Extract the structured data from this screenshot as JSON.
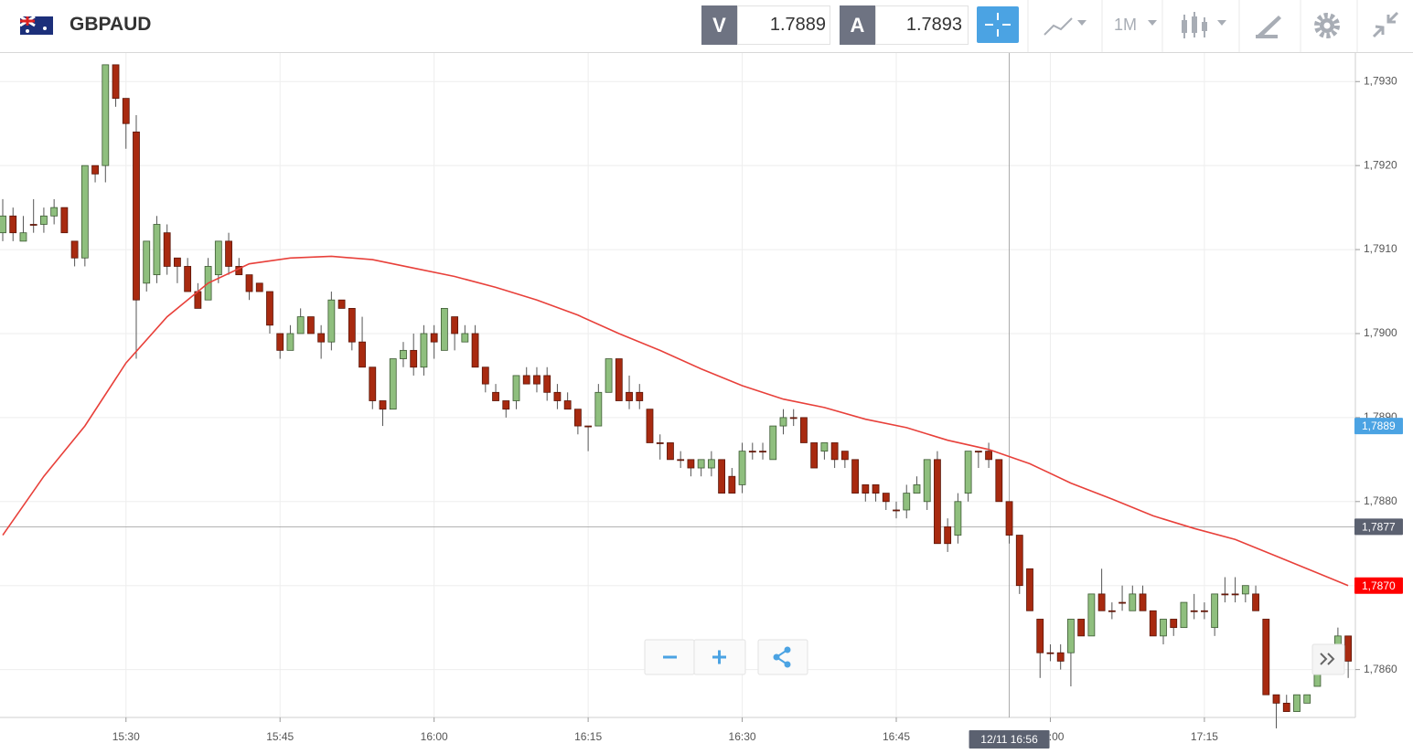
{
  "header": {
    "symbol": "GBPAUD",
    "bid_label": "V",
    "bid": 1.7889,
    "ask_label": "A",
    "ask": 1.7893,
    "timeframe": "1M"
  },
  "chart_data": {
    "type": "candlestick",
    "x": [
      "15:18",
      "15:19",
      "15:20",
      "15:21",
      "15:22",
      "15:23",
      "15:24",
      "15:25",
      "15:26",
      "15:27",
      "15:28",
      "15:29",
      "15:30",
      "15:31",
      "15:32",
      "15:33",
      "15:34",
      "15:35",
      "15:36",
      "15:37",
      "15:38",
      "15:39",
      "15:40",
      "15:41",
      "15:42",
      "15:43",
      "15:44",
      "15:45",
      "15:46",
      "15:47",
      "15:48",
      "15:49",
      "15:50",
      "15:51",
      "15:52",
      "15:53",
      "15:54",
      "15:55",
      "15:56",
      "15:57",
      "15:58",
      "15:59",
      "16:00",
      "16:01",
      "16:02",
      "16:03",
      "16:04",
      "16:05",
      "16:06",
      "16:07",
      "16:08",
      "16:09",
      "16:10",
      "16:11",
      "16:12",
      "16:13",
      "16:14",
      "16:15",
      "16:16",
      "16:17",
      "16:18",
      "16:19",
      "16:20",
      "16:21",
      "16:22",
      "16:23",
      "16:24",
      "16:25",
      "16:26",
      "16:27",
      "16:28",
      "16:29",
      "16:30",
      "16:31",
      "16:32",
      "16:33",
      "16:34",
      "16:35",
      "16:36",
      "16:37",
      "16:38",
      "16:39",
      "16:40",
      "16:41",
      "16:42",
      "16:43",
      "16:44",
      "16:45",
      "16:46",
      "16:47",
      "16:48",
      "16:49",
      "16:50",
      "16:51",
      "16:52",
      "16:53",
      "16:54",
      "16:55",
      "16:56",
      "16:57",
      "16:58",
      "16:59",
      "17:00",
      "17:01",
      "17:02",
      "17:03",
      "17:04",
      "17:05",
      "17:06",
      "17:07",
      "17:08",
      "17:09",
      "17:10",
      "17:11",
      "17:12",
      "17:13",
      "17:14",
      "17:15",
      "17:16",
      "17:17",
      "17:18",
      "17:19",
      "17:20",
      "17:21",
      "17:22",
      "17:23",
      "17:24",
      "17:25",
      "17:26",
      "17:27",
      "17:28",
      "17:29"
    ],
    "open": [
      1.7912,
      1.7914,
      1.7911,
      1.7913,
      1.7913,
      1.7914,
      1.7915,
      1.7911,
      1.7909,
      1.792,
      1.792,
      1.7932,
      1.7928,
      1.7924,
      1.7906,
      1.7907,
      1.7912,
      1.7909,
      1.7908,
      1.7905,
      1.7904,
      1.7907,
      1.7911,
      1.7908,
      1.7907,
      1.7906,
      1.7905,
      1.79,
      1.7898,
      1.79,
      1.7902,
      1.79,
      1.7899,
      1.7904,
      1.7903,
      1.7899,
      1.7896,
      1.7892,
      1.7891,
      1.7897,
      1.7898,
      1.7896,
      1.79,
      1.7898,
      1.7902,
      1.7899,
      1.79,
      1.7896,
      1.7893,
      1.7892,
      1.7892,
      1.7895,
      1.7895,
      1.7895,
      1.7893,
      1.7892,
      1.7891,
      1.7889,
      1.7889,
      1.7893,
      1.7897,
      1.7893,
      1.7893,
      1.7891,
      1.7887,
      1.7887,
      1.7885,
      1.7885,
      1.7884,
      1.7884,
      1.7885,
      1.7883,
      1.7882,
      1.7886,
      1.7886,
      1.7885,
      1.7889,
      1.789,
      1.789,
      1.7887,
      1.7886,
      1.7887,
      1.7886,
      1.7885,
      1.7882,
      1.7882,
      1.7881,
      1.7879,
      1.7879,
      1.7881,
      1.788,
      1.7885,
      1.7877,
      1.7876,
      1.7881,
      1.7886,
      1.7886,
      1.7885,
      1.788,
      1.7876,
      1.7872,
      1.7866,
      1.7862,
      1.7862,
      1.7862,
      1.7866,
      1.7864,
      1.7869,
      1.7867,
      1.7868,
      1.7867,
      1.7869,
      1.7867,
      1.7864,
      1.7866,
      1.7865,
      1.7867,
      1.7867,
      1.7865,
      1.7869,
      1.7869,
      1.7869,
      1.7869,
      1.7866,
      1.7857,
      1.7856,
      1.7855,
      1.7856,
      1.7858,
      1.7861,
      1.7862,
      1.7864
    ],
    "high": [
      1.7916,
      1.7915,
      1.7914,
      1.7916,
      1.7915,
      1.7916,
      1.7915,
      1.7911,
      1.792,
      1.792,
      1.7932,
      1.7932,
      1.7928,
      1.7926,
      1.7911,
      1.7914,
      1.7913,
      1.7909,
      1.7909,
      1.7906,
      1.7909,
      1.7911,
      1.7912,
      1.7909,
      1.7907,
      1.7906,
      1.7905,
      1.79,
      1.7901,
      1.7903,
      1.7902,
      1.7901,
      1.7905,
      1.7904,
      1.7903,
      1.7902,
      1.7896,
      1.7892,
      1.7897,
      1.7899,
      1.79,
      1.7901,
      1.7901,
      1.7903,
      1.7902,
      1.7901,
      1.7901,
      1.7896,
      1.7894,
      1.7892,
      1.7895,
      1.7896,
      1.7896,
      1.7896,
      1.7894,
      1.7893,
      1.7891,
      1.7889,
      1.7894,
      1.7897,
      1.7897,
      1.7895,
      1.7894,
      1.7891,
      1.7888,
      1.7887,
      1.7886,
      1.7885,
      1.7885,
      1.7886,
      1.7885,
      1.7884,
      1.7887,
      1.7887,
      1.7887,
      1.7889,
      1.7891,
      1.7891,
      1.789,
      1.7887,
      1.7887,
      1.7887,
      1.7886,
      1.7885,
      1.7882,
      1.7882,
      1.7881,
      1.788,
      1.7882,
      1.7883,
      1.7885,
      1.7886,
      1.7878,
      1.7881,
      1.7886,
      1.7886,
      1.7887,
      1.7885,
      1.788,
      1.7876,
      1.7872,
      1.7866,
      1.7863,
      1.7863,
      1.7866,
      1.7866,
      1.7869,
      1.7872,
      1.7868,
      1.787,
      1.787,
      1.787,
      1.7867,
      1.7866,
      1.7866,
      1.7868,
      1.7869,
      1.7868,
      1.7869,
      1.7871,
      1.7871,
      1.787,
      1.787,
      1.7866,
      1.7857,
      1.7857,
      1.7857,
      1.7857,
      1.786,
      1.7862,
      1.7865,
      1.7864
    ],
    "low": [
      1.7911,
      1.7911,
      1.7911,
      1.7912,
      1.7912,
      1.7913,
      1.7912,
      1.7908,
      1.7908,
      1.7918,
      1.7918,
      1.7927,
      1.7922,
      1.7897,
      1.7905,
      1.7906,
      1.7907,
      1.7906,
      1.7905,
      1.7903,
      1.7904,
      1.7906,
      1.7907,
      1.7907,
      1.7904,
      1.7905,
      1.79,
      1.7897,
      1.7898,
      1.79,
      1.79,
      1.7897,
      1.7898,
      1.7903,
      1.7898,
      1.7896,
      1.7891,
      1.7889,
      1.7891,
      1.7896,
      1.7895,
      1.7895,
      1.7897,
      1.7898,
      1.7898,
      1.7899,
      1.7896,
      1.7893,
      1.7892,
      1.789,
      1.7891,
      1.7894,
      1.7893,
      1.7892,
      1.7891,
      1.7891,
      1.7888,
      1.7886,
      1.7889,
      1.7893,
      1.7892,
      1.7891,
      1.7891,
      1.7887,
      1.7885,
      1.7885,
      1.7884,
      1.7883,
      1.7883,
      1.7883,
      1.7881,
      1.7881,
      1.7881,
      1.7885,
      1.7885,
      1.7885,
      1.7888,
      1.7889,
      1.7887,
      1.7884,
      1.7885,
      1.7884,
      1.7884,
      1.7881,
      1.788,
      1.788,
      1.7879,
      1.7878,
      1.7878,
      1.7881,
      1.7879,
      1.7875,
      1.7874,
      1.7875,
      1.788,
      1.7884,
      1.7884,
      1.788,
      1.7875,
      1.7869,
      1.7867,
      1.7859,
      1.7861,
      1.786,
      1.7858,
      1.7864,
      1.7864,
      1.7867,
      1.7866,
      1.7867,
      1.7867,
      1.7867,
      1.7864,
      1.7863,
      1.7864,
      1.7865,
      1.7866,
      1.7866,
      1.7864,
      1.7868,
      1.7868,
      1.7868,
      1.7867,
      1.7857,
      1.7853,
      1.7855,
      1.7855,
      1.7856,
      1.7858,
      1.7861,
      1.7862,
      1.7859
    ],
    "close": [
      1.7914,
      1.7912,
      1.7912,
      1.7913,
      1.7914,
      1.7915,
      1.7912,
      1.7909,
      1.792,
      1.7919,
      1.7932,
      1.7928,
      1.7925,
      1.7904,
      1.7911,
      1.7913,
      1.7908,
      1.7908,
      1.7905,
      1.7903,
      1.7908,
      1.7911,
      1.7908,
      1.7907,
      1.7905,
      1.7905,
      1.7901,
      1.7898,
      1.79,
      1.7902,
      1.79,
      1.7899,
      1.7904,
      1.7903,
      1.7899,
      1.7896,
      1.7892,
      1.7891,
      1.7897,
      1.7898,
      1.7896,
      1.79,
      1.7899,
      1.7903,
      1.79,
      1.79,
      1.7896,
      1.7894,
      1.7892,
      1.7891,
      1.7895,
      1.7894,
      1.7894,
      1.7893,
      1.7892,
      1.7891,
      1.7889,
      1.7889,
      1.7893,
      1.7897,
      1.7892,
      1.7892,
      1.7892,
      1.7887,
      1.7887,
      1.7885,
      1.7885,
      1.7884,
      1.7885,
      1.7885,
      1.7881,
      1.7881,
      1.7886,
      1.7886,
      1.7886,
      1.7889,
      1.789,
      1.789,
      1.7887,
      1.7884,
      1.7887,
      1.7885,
      1.7885,
      1.7881,
      1.7881,
      1.7881,
      1.788,
      1.7879,
      1.7881,
      1.7882,
      1.7885,
      1.7875,
      1.7875,
      1.788,
      1.7886,
      1.7886,
      1.7885,
      1.788,
      1.7876,
      1.787,
      1.7867,
      1.7862,
      1.7862,
      1.7861,
      1.7866,
      1.7864,
      1.7869,
      1.7867,
      1.7867,
      1.7868,
      1.7869,
      1.7867,
      1.7864,
      1.7866,
      1.7865,
      1.7868,
      1.7867,
      1.7867,
      1.7869,
      1.7869,
      1.7869,
      1.787,
      1.7867,
      1.7857,
      1.7856,
      1.7855,
      1.7857,
      1.7857,
      1.786,
      1.7862,
      1.7864,
      1.7861
    ],
    "up_color": "#8fbf7e",
    "down_color": "#a82a10",
    "series": [
      {
        "color": "#e8403a",
        "x": [
          "15:18",
          "15:22",
          "15:26",
          "15:30",
          "15:34",
          "15:38",
          "15:42",
          "15:46",
          "15:50",
          "15:54",
          "15:58",
          "16:02",
          "16:06",
          "16:10",
          "16:14",
          "16:18",
          "16:22",
          "16:26",
          "16:30",
          "16:34",
          "16:38",
          "16:42",
          "16:46",
          "16:50",
          "16:54",
          "16:58",
          "17:02",
          "17:06",
          "17:10",
          "17:14",
          "17:18",
          "17:22",
          "17:26",
          "17:29"
        ],
        "values": [
          1.7876,
          1.7883,
          1.7889,
          1.78965,
          1.7902,
          1.7906,
          1.79083,
          1.7909,
          1.79092,
          1.79088,
          1.79078,
          1.79068,
          1.79055,
          1.7904,
          1.79022,
          1.79,
          1.7898,
          1.78958,
          1.78938,
          1.78922,
          1.78912,
          1.78898,
          1.78888,
          1.78873,
          1.78862,
          1.78845,
          1.78822,
          1.78803,
          1.78783,
          1.78768,
          1.78755,
          1.78735,
          1.78715,
          1.787
        ]
      }
    ],
    "ylim": [
      1.78543,
      1.79334
    ],
    "yticks": [
      {
        "value": 1.786,
        "label": "1,7860"
      },
      {
        "value": 1.787,
        "label": "1,7870"
      },
      {
        "value": 1.788,
        "label": "1,7880"
      },
      {
        "value": 1.789,
        "label": "1,7890"
      },
      {
        "value": 1.79,
        "label": "1,7900"
      },
      {
        "value": 1.791,
        "label": "1,7910"
      },
      {
        "value": 1.792,
        "label": "1,7920"
      },
      {
        "value": 1.793,
        "label": "1,7930"
      }
    ],
    "xticks": [
      "15:30",
      "15:45",
      "16:00",
      "16:15",
      "16:30",
      "16:45",
      "17:00",
      "17:15"
    ],
    "grid": true,
    "price_labels": [
      {
        "value": 1.7889,
        "label": "1,7889",
        "color": "#4ba3e3"
      },
      {
        "value": 1.787,
        "label": "1,7870",
        "color": "#ff0000"
      }
    ],
    "crosshair": {
      "x": "16:56",
      "label": "12/11 16:56",
      "y": {
        "value": 1.7877,
        "label": "1,7877"
      }
    }
  }
}
